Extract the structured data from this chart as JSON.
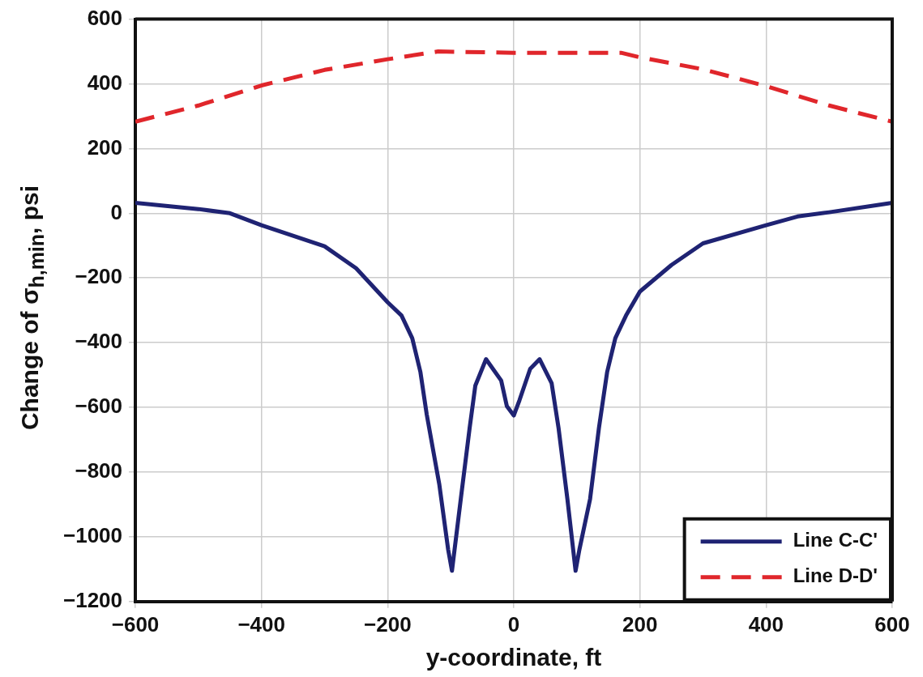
{
  "chart_data": {
    "type": "line",
    "xlabel": "y-coordinate, ft",
    "ylabel": "Change of σ$_{h,min}$, psi",
    "xlim": [
      -600,
      600
    ],
    "xticks": [
      -600,
      -400,
      -200,
      0,
      200,
      400,
      600
    ],
    "ylim": [
      -1200,
      600
    ],
    "yticks": [
      -1200,
      -1000,
      -800,
      -600,
      -400,
      -200,
      0,
      200,
      400,
      600
    ],
    "grid": true,
    "legend": "bottom right",
    "marker": "none",
    "series": [
      {
        "name": "Line C-C'",
        "color": "#1f2373",
        "line_style": "solid",
        "x": [
          -600,
          -500,
          -450,
          -400,
          -300,
          -250,
          -200,
          -178,
          -161,
          -148,
          -138,
          -118,
          -104,
          -98,
          -84,
          -70,
          -61,
          -44,
          -20,
          -11,
          0,
          9,
          26,
          41,
          60,
          71,
          85,
          98,
          104,
          121,
          135,
          148,
          161,
          178,
          200,
          250,
          300,
          400,
          450,
          500,
          600
        ],
        "values": [
          32,
          13,
          0,
          -37,
          -102,
          -170,
          -275,
          -316,
          -386,
          -491,
          -622,
          -839,
          -1040,
          -1105,
          -883,
          -664,
          -533,
          -451,
          -517,
          -596,
          -625,
          -578,
          -481,
          -451,
          -525,
          -664,
          -883,
          -1105,
          -1040,
          -883,
          -664,
          -491,
          -386,
          -316,
          -242,
          -160,
          -93,
          -37,
          -10,
          3,
          32
        ]
      },
      {
        "name": "Line D-D'",
        "color": "#e0262b",
        "line_style": "dashed",
        "x": [
          -600,
          -500,
          -400,
          -300,
          -200,
          -120,
          0,
          170,
          200,
          300,
          400,
          500,
          600
        ],
        "values": [
          283,
          333,
          395,
          443,
          476,
          500,
          496,
          496,
          482,
          445,
          393,
          333,
          283
        ]
      }
    ]
  }
}
